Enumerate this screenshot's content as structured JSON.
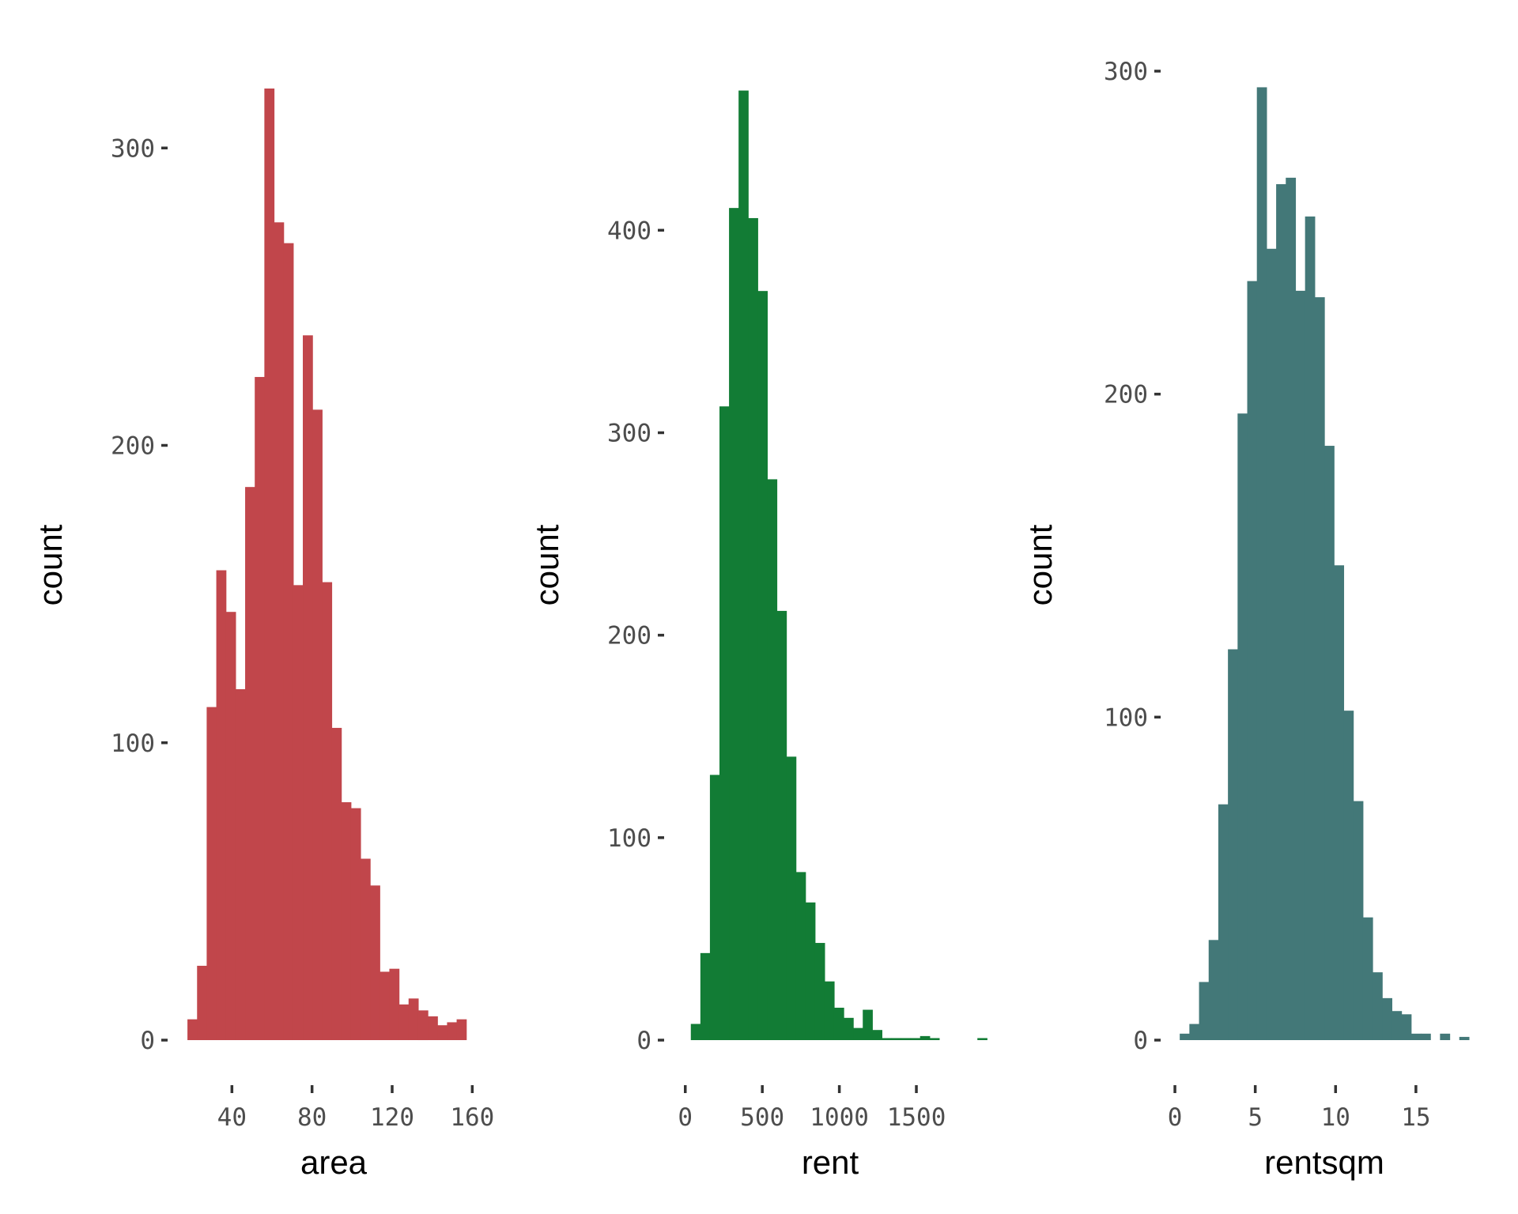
{
  "chart_data": [
    {
      "type": "histogram",
      "xlabel": "area",
      "ylabel": "count",
      "color": "#C1464B",
      "xlim": [
        15,
        165
      ],
      "ylim": [
        0,
        320
      ],
      "xticks": [
        40,
        80,
        120,
        160
      ],
      "yticks": [
        0,
        100,
        200,
        300
      ],
      "bin_width": 4.8,
      "bin_start": 17.8,
      "values": [
        7,
        25,
        112,
        158,
        144,
        118,
        186,
        223,
        320,
        275,
        268,
        153,
        237,
        212,
        154,
        105,
        80,
        78,
        61,
        52,
        23,
        24,
        12,
        14,
        10,
        8,
        5,
        6,
        7
      ]
    },
    {
      "type": "histogram",
      "xlabel": "rent",
      "ylabel": "count",
      "color": "#127C35",
      "xlim": [
        -50,
        1900
      ],
      "ylim": [
        0,
        470
      ],
      "xticks": [
        0,
        500,
        1000,
        1500
      ],
      "yticks": [
        0,
        100,
        200,
        300,
        400
      ],
      "bin_width": 62,
      "bin_start": 36,
      "values": [
        8,
        43,
        131,
        313,
        411,
        469,
        406,
        370,
        277,
        212,
        140,
        83,
        68,
        48,
        29,
        16,
        11,
        6,
        15,
        5,
        1,
        1,
        1,
        1,
        2,
        1,
        0,
        0,
        0,
        0,
        1
      ]
    },
    {
      "type": "histogram",
      "xlabel": "rentsqm",
      "ylabel": "count",
      "color": "#437878",
      "xlim": [
        -0.2,
        18.5
      ],
      "ylim": [
        0,
        300
      ],
      "xticks": [
        0,
        5,
        10,
        15
      ],
      "yticks": [
        0,
        100,
        200,
        300
      ],
      "bin_width": 0.6,
      "bin_start": 0.3,
      "values": [
        2,
        5,
        18,
        31,
        73,
        121,
        194,
        235,
        295,
        245,
        265,
        267,
        232,
        255,
        230,
        184,
        147,
        102,
        74,
        38,
        21,
        13,
        9,
        8,
        2,
        2,
        0,
        2,
        0,
        1
      ]
    }
  ]
}
